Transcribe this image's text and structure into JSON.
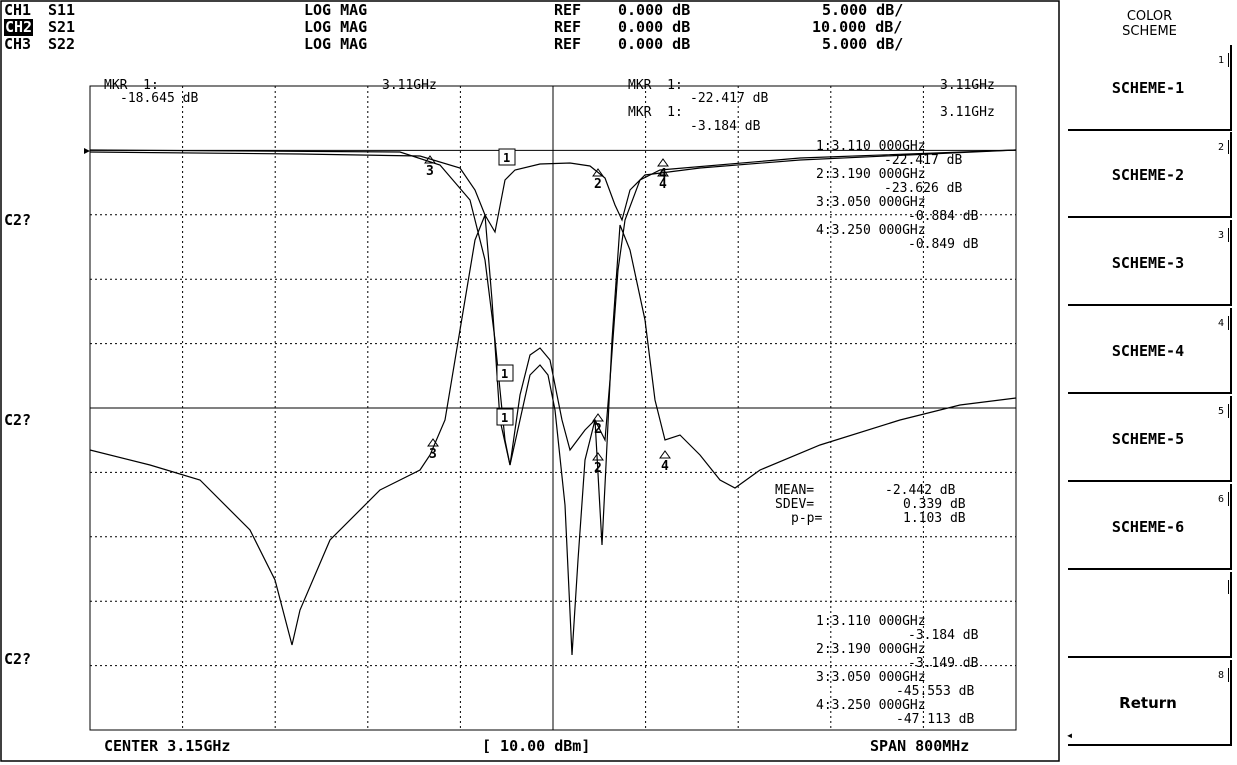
{
  "channels": [
    {
      "name": "CH1",
      "param": "S11",
      "format": "LOG MAG",
      "ref_label": "REF",
      "ref": "0.000 dB",
      "scale": "5.000 dB/",
      "active": false
    },
    {
      "name": "CH2",
      "param": "S21",
      "format": "LOG MAG",
      "ref_label": "REF",
      "ref": "0.000 dB",
      "scale": "10.000 dB/",
      "active": true
    },
    {
      "name": "CH3",
      "param": "S22",
      "format": "LOG MAG",
      "ref_label": "REF",
      "ref": "0.000 dB",
      "scale": "5.000 dB/",
      "active": false
    }
  ],
  "marker_readouts": {
    "left_mkr": "MKR  1:",
    "left_freq": "3.11GHz",
    "left_val": "-18.645 dB",
    "right_mkr": "MKR  1:",
    "right_freq": "3.11GHz",
    "right_val": "-22.417 dB",
    "right2_mkr": "MKR  1:",
    "right2_freq": "3.11GHz",
    "right2_val": "-3.184 dB"
  },
  "marker_table_upper": [
    "1:3.110 000GHz",
    "-22.417 dB",
    "2:3.190 000GHz",
    "-23.626 dB",
    "3:3.050 000GHz",
    "-0.884 dB",
    "4:3.250 000GHz",
    "-0.849 dB"
  ],
  "stats": [
    {
      "label": "MEAN=",
      "value": "-2.442 dB"
    },
    {
      "label": "SDEV=",
      "value": "0.339 dB"
    },
    {
      "label": "p-p=",
      "value": "1.103 dB"
    }
  ],
  "marker_table_lower": [
    "1:3.110 000GHz",
    "-3.184 dB",
    "2:3.190 000GHz",
    "-3.149 dB",
    "3:3.050 000GHz",
    "-45.553 dB",
    "4:3.250 000GHz",
    "-47.113 dB"
  ],
  "y_labels": [
    "C2?",
    "C2?",
    "C2?"
  ],
  "footer": {
    "center": "CENTER 3.15GHz",
    "power": "[ 10.00 dBm]",
    "span": "SPAN 800MHz"
  },
  "softkeys": {
    "title_line1": "COLOR",
    "title_line2": "SCHEME",
    "buttons": [
      {
        "label": "SCHEME-1",
        "num": "1"
      },
      {
        "label": "SCHEME-2",
        "num": "2"
      },
      {
        "label": "SCHEME-3",
        "num": "3"
      },
      {
        "label": "SCHEME-4",
        "num": "4"
      },
      {
        "label": "SCHEME-5",
        "num": "5"
      },
      {
        "label": "SCHEME-6",
        "num": "6"
      },
      {
        "label": "",
        "num": ""
      },
      {
        "label": "Return",
        "num": "8"
      }
    ]
  },
  "marker_tags": [
    "1",
    "2",
    "3",
    "4"
  ]
}
